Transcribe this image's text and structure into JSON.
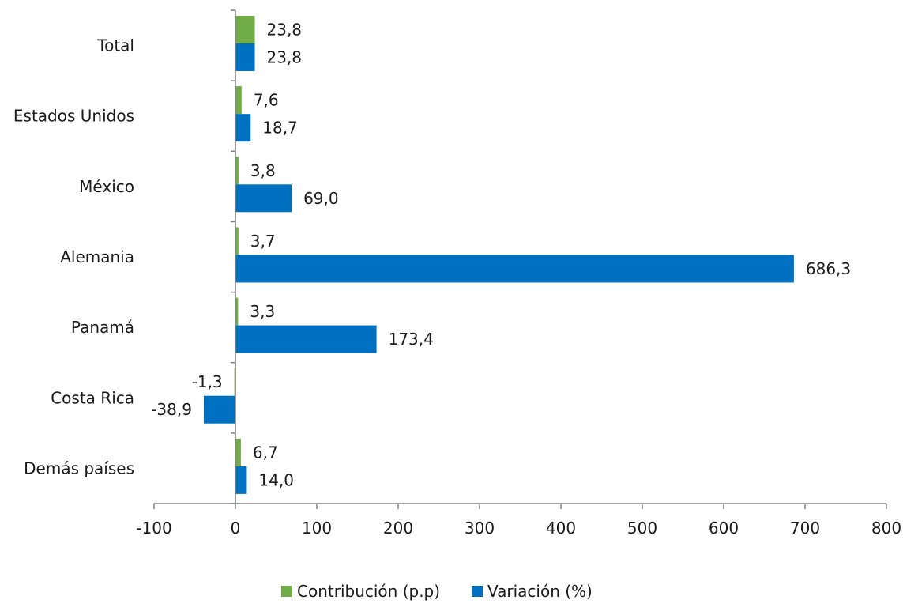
{
  "chart_data": {
    "type": "bar",
    "orientation": "horizontal",
    "categories": [
      "Total",
      "Estados Unidos",
      "México",
      "Alemania",
      "Panamá",
      "Costa Rica",
      "Demás países"
    ],
    "series": [
      {
        "name": "Contribución (p.p)",
        "color": "#70ad47",
        "values": [
          23.8,
          7.6,
          3.8,
          3.7,
          3.3,
          -1.3,
          6.7
        ],
        "labels": [
          "23,8",
          "7,6",
          "3,8",
          "3,7",
          "3,3",
          "-1,3",
          "6,7"
        ]
      },
      {
        "name": "Variación (%)",
        "color": "#0070c0",
        "values": [
          23.8,
          18.7,
          69.0,
          686.3,
          173.4,
          -38.9,
          14.0
        ],
        "labels": [
          "23,8",
          "18,7",
          "69,0",
          "686,3",
          "173,4",
          "-38,9",
          "14,0"
        ]
      }
    ],
    "x_ticks": [
      -100,
      0,
      100,
      200,
      300,
      400,
      500,
      600,
      700,
      800
    ],
    "x_tick_labels": [
      "-100",
      "0",
      "100",
      "200",
      "300",
      "400",
      "500",
      "600",
      "700",
      "800"
    ],
    "xlim": [
      -100,
      800
    ],
    "grid": false,
    "legend_position": "bottom",
    "title": "",
    "xlabel": "",
    "ylabel": ""
  }
}
